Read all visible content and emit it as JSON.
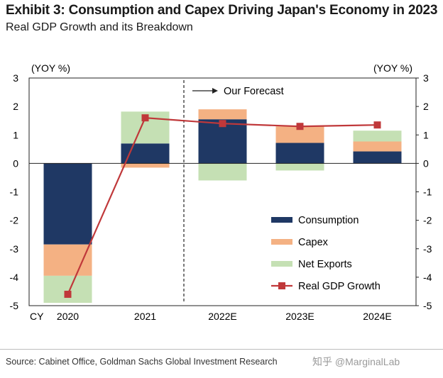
{
  "title": "Exhibit 3: Consumption and Capex Driving Japan's Economy in 2023",
  "subtitle": "Real GDP Growth and its Breakdown",
  "source": "Source: Cabinet Office, Goldman Sachs Global Investment Research",
  "watermark": "知乎 @MarginalLab",
  "colors": {
    "consumption": "#1f3864",
    "capex": "#f4b183",
    "net_exports": "#c5e0b4",
    "real_gdp": "#c0383a"
  },
  "chart_data": {
    "type": "bar",
    "stacked": true,
    "x_prefix": "CY",
    "categories": [
      "2020",
      "2021",
      "2022E",
      "2023E",
      "2024E"
    ],
    "series": [
      {
        "name": "Consumption",
        "type": "bar",
        "values": [
          -2.85,
          0.7,
          1.55,
          0.72,
          0.42
        ]
      },
      {
        "name": "Capex",
        "type": "bar",
        "values": [
          -1.1,
          -0.15,
          0.0,
          0.58,
          0.35
        ]
      },
      {
        "name": "Net Exports",
        "type": "bar",
        "values": [
          -0.95,
          1.12,
          -0.6,
          -0.25,
          0.38
        ]
      },
      {
        "name": "Real GDP Growth",
        "type": "line",
        "values": [
          -4.6,
          1.6,
          1.4,
          1.3,
          1.35
        ]
      }
    ],
    "extra_segments": [
      {
        "category": "2022E",
        "series": "Capex",
        "value": 0.35,
        "stack_order": "top"
      }
    ],
    "ylabel_left": "(YOY %)",
    "ylabel_right": "(YOY %)",
    "ylim": [
      -5,
      3
    ],
    "yticks": [
      "3",
      "2",
      "1",
      "0",
      "-1",
      "-2",
      "-3",
      "-4",
      "-5"
    ],
    "annotation": "Our Forecast",
    "legend": {
      "placement": "bottom-right",
      "items": [
        "Consumption",
        "Capex",
        "Net Exports",
        "Real GDP Growth"
      ]
    },
    "grid": false
  }
}
